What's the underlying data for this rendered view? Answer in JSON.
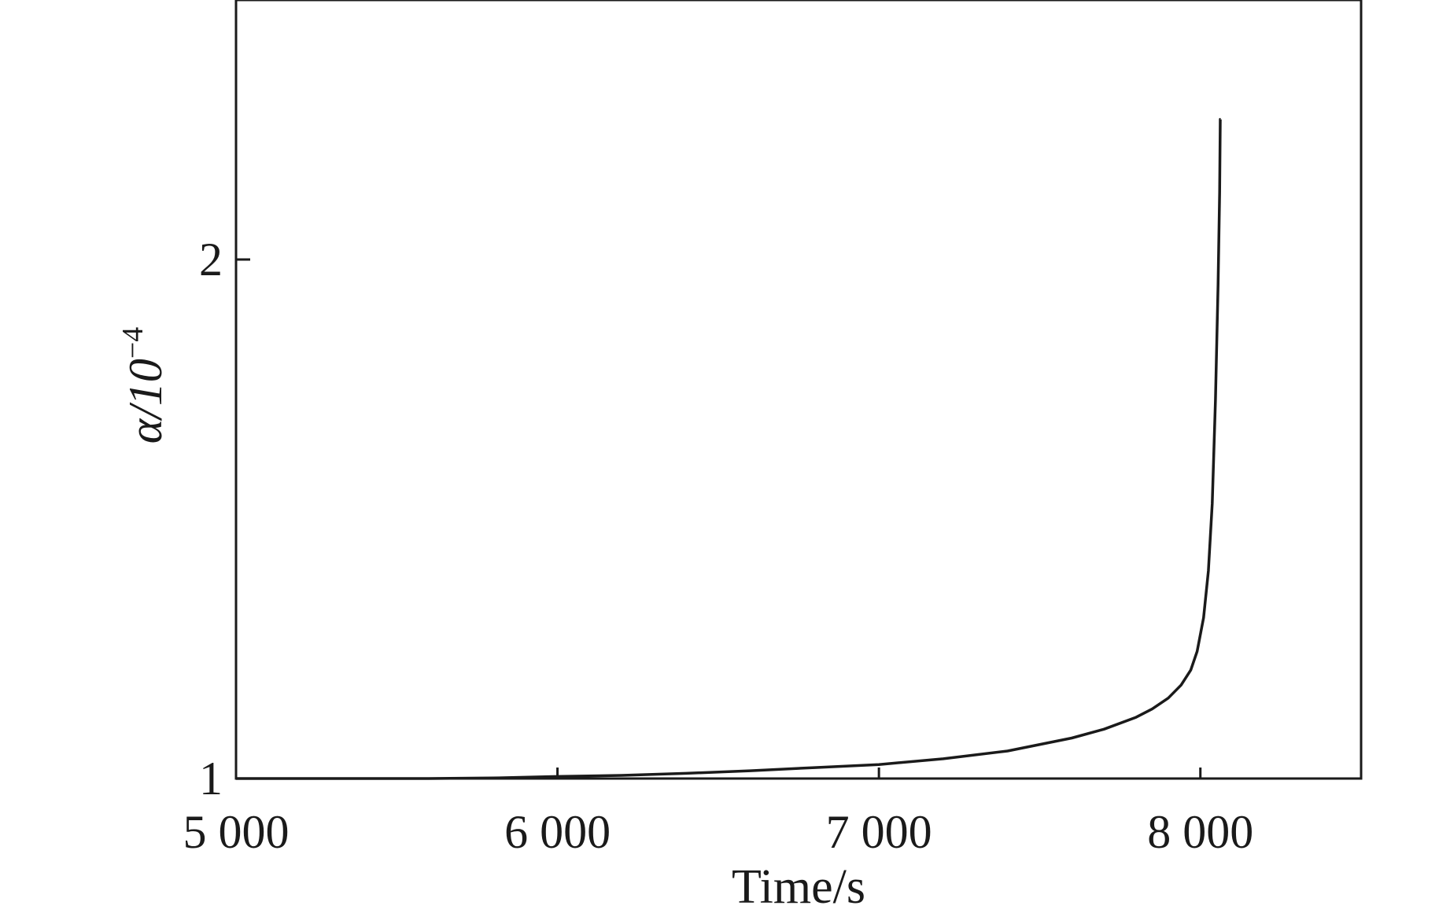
{
  "chart_data": {
    "type": "line",
    "title": "",
    "xlabel": "Time/s",
    "ylabel": {
      "base": "α/10",
      "exponent": "−4"
    },
    "xlim": [
      5000,
      8500
    ],
    "ylim": [
      1,
      2.5
    ],
    "x_ticks": [
      {
        "value": 5000,
        "label": "5 000"
      },
      {
        "value": 6000,
        "label": "6 000"
      },
      {
        "value": 7000,
        "label": "7 000"
      },
      {
        "value": 8000,
        "label": "8 000"
      }
    ],
    "y_ticks": [
      {
        "value": 1,
        "label": "1"
      },
      {
        "value": 2,
        "label": "2"
      }
    ],
    "grid": false,
    "legend": "none",
    "series": [
      {
        "color": "#1a1a1a",
        "points": [
          [
            5000,
            1.0
          ],
          [
            5200,
            1.0
          ],
          [
            5400,
            1.0
          ],
          [
            5600,
            1.0
          ],
          [
            5800,
            1.001
          ],
          [
            6000,
            1.004
          ],
          [
            6200,
            1.006
          ],
          [
            6400,
            1.01
          ],
          [
            6600,
            1.015
          ],
          [
            6800,
            1.021
          ],
          [
            7000,
            1.027
          ],
          [
            7200,
            1.038
          ],
          [
            7400,
            1.053
          ],
          [
            7600,
            1.078
          ],
          [
            7700,
            1.095
          ],
          [
            7800,
            1.118
          ],
          [
            7850,
            1.134
          ],
          [
            7900,
            1.155
          ],
          [
            7940,
            1.18
          ],
          [
            7970,
            1.209
          ],
          [
            7990,
            1.245
          ],
          [
            8010,
            1.31
          ],
          [
            8025,
            1.4
          ],
          [
            8037,
            1.53
          ],
          [
            8047,
            1.73
          ],
          [
            8055,
            1.95
          ],
          [
            8060,
            2.13
          ],
          [
            8062,
            2.27
          ],
          [
            8063,
            2.27
          ]
        ]
      }
    ]
  }
}
